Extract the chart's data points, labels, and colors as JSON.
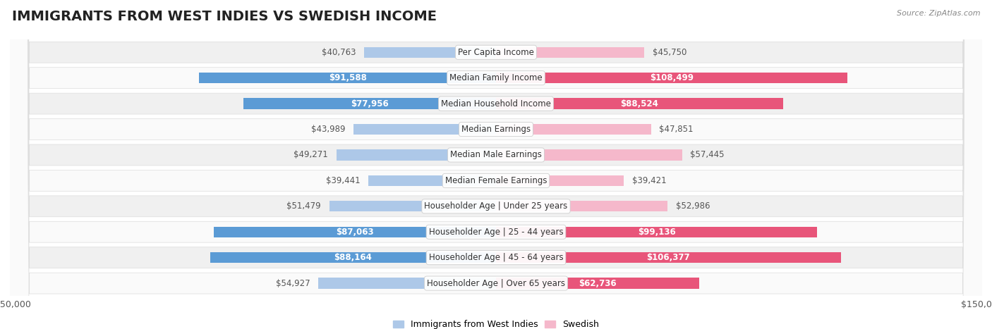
{
  "title": "IMMIGRANTS FROM WEST INDIES VS SWEDISH INCOME",
  "source": "Source: ZipAtlas.com",
  "categories": [
    "Per Capita Income",
    "Median Family Income",
    "Median Household Income",
    "Median Earnings",
    "Median Male Earnings",
    "Median Female Earnings",
    "Householder Age | Under 25 years",
    "Householder Age | 25 - 44 years",
    "Householder Age | 45 - 64 years",
    "Householder Age | Over 65 years"
  ],
  "west_indies": [
    40763,
    91588,
    77956,
    43989,
    49271,
    39441,
    51479,
    87063,
    88164,
    54927
  ],
  "swedish": [
    45750,
    108499,
    88524,
    47851,
    57445,
    39421,
    52986,
    99136,
    106377,
    62736
  ],
  "west_indies_color_light": "#adc8e8",
  "west_indies_color_dark": "#5b9bd5",
  "swedish_color_light": "#f5b8cb",
  "swedish_color_dark": "#e8557a",
  "max_value": 150000,
  "row_bg_even": "#f0f0f0",
  "row_bg_odd": "#fafafa",
  "legend_west_indies": "Immigrants from West Indies",
  "legend_swedish": "Swedish",
  "title_fontsize": 14,
  "source_fontsize": 8,
  "tick_fontsize": 9,
  "category_fontsize": 8.5,
  "value_fontsize": 8.5,
  "dark_threshold": 60000,
  "wi_label_outside_color": "#555555",
  "sw_label_outside_color": "#555555",
  "label_inside_color": "#ffffff"
}
